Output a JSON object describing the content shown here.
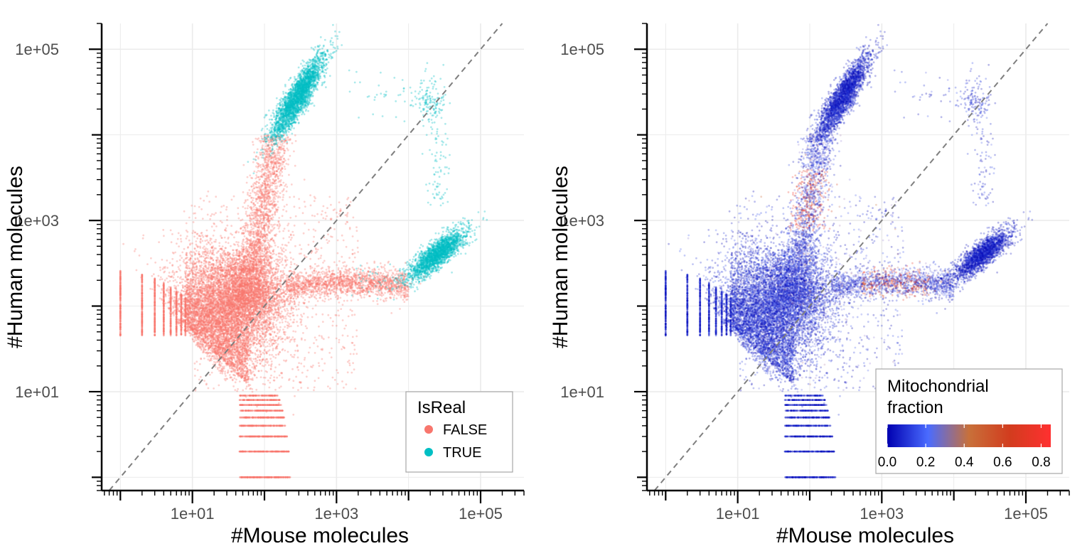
{
  "chart_data": [
    {
      "type": "scatter",
      "title": "",
      "xlabel": "#Mouse molecules",
      "ylabel": "#Human molecules",
      "xscale": "log10",
      "yscale": "log10",
      "xlim": [
        0.55,
        400000
      ],
      "ylim": [
        0.7,
        200000
      ],
      "x_ticks": [
        10,
        1000,
        100000
      ],
      "x_tick_labels": [
        "1e+01",
        "1e+03",
        "1e+05"
      ],
      "y_ticks": [
        10,
        1000,
        100000
      ],
      "y_tick_labels": [
        "1e+01",
        "1e+03",
        "1e+05"
      ],
      "grid": true,
      "reference_line": {
        "type": "identity",
        "style": "dashed",
        "color": "#7f7f7f"
      },
      "color_by": "IsReal",
      "legend": {
        "title": "IsReal",
        "placement": "bottom-right",
        "entries": [
          {
            "label": "FALSE",
            "color": "#F8766D"
          },
          {
            "label": "TRUE",
            "color": "#00BFC4"
          }
        ]
      },
      "series": [
        {
          "name": "FALSE",
          "color": "#F8766D",
          "clusters": [
            {
              "description": "low count cloud",
              "x_center": 15,
              "y_center": 60,
              "x_range": [
                1,
                200
              ],
              "y_range": [
                5,
                400
              ]
            },
            {
              "description": "human arm below threshold",
              "x_center": 100,
              "y_center": 2000,
              "x_range": [
                40,
                250
              ],
              "y_range": [
                400,
                10000
              ]
            },
            {
              "description": "mouse arm below threshold",
              "x_center": 1000,
              "y_center": 150,
              "x_range": [
                200,
                10000
              ],
              "y_range": [
                80,
                250
              ]
            }
          ]
        },
        {
          "name": "TRUE",
          "color": "#00BFC4",
          "clusters": [
            {
              "description": "human cells",
              "x_center": 300,
              "y_center": 30000,
              "x_range": [
                150,
                900
              ],
              "y_range": [
                10000,
                100000
              ]
            },
            {
              "description": "mouse cells",
              "x_center": 25000,
              "y_center": 350,
              "x_range": [
                9000,
                60000
              ],
              "y_range": [
                150,
                900
              ]
            },
            {
              "description": "doublets",
              "x_center": 20000,
              "y_center": 20000,
              "x_range": [
                3000,
                40000
              ],
              "y_range": [
                2000,
                50000
              ]
            }
          ]
        }
      ]
    },
    {
      "type": "scatter",
      "title": "",
      "xlabel": "#Mouse molecules",
      "ylabel": "#Human molecules",
      "xscale": "log10",
      "yscale": "log10",
      "xlim": [
        0.55,
        400000
      ],
      "ylim": [
        0.7,
        200000
      ],
      "x_ticks": [
        10,
        1000,
        100000
      ],
      "x_tick_labels": [
        "1e+01",
        "1e+03",
        "1e+05"
      ],
      "y_ticks": [
        10,
        1000,
        100000
      ],
      "y_tick_labels": [
        "1e+01",
        "1e+03",
        "1e+05"
      ],
      "grid": true,
      "reference_line": {
        "type": "identity",
        "style": "dashed",
        "color": "#7f7f7f"
      },
      "color_by": "Mitochondrial fraction",
      "colorbar": {
        "title_lines": [
          "Mitochondrial",
          "fraction"
        ],
        "placement": "bottom-right",
        "range": [
          0.0,
          0.85
        ],
        "ticks": [
          0.0,
          0.2,
          0.4,
          0.6,
          0.8
        ],
        "tick_labels": [
          "0.0",
          "0.2",
          "0.4",
          "0.6",
          "0.8"
        ],
        "colors": [
          "#0000b0",
          "#4a6bff",
          "#c8703a",
          "#d23c1e",
          "#ff3030"
        ]
      },
      "notes": "Same points as left panel; most points blue (low fraction), orange/red points along human arm near x=100 and mouse arm near x=3000."
    }
  ]
}
